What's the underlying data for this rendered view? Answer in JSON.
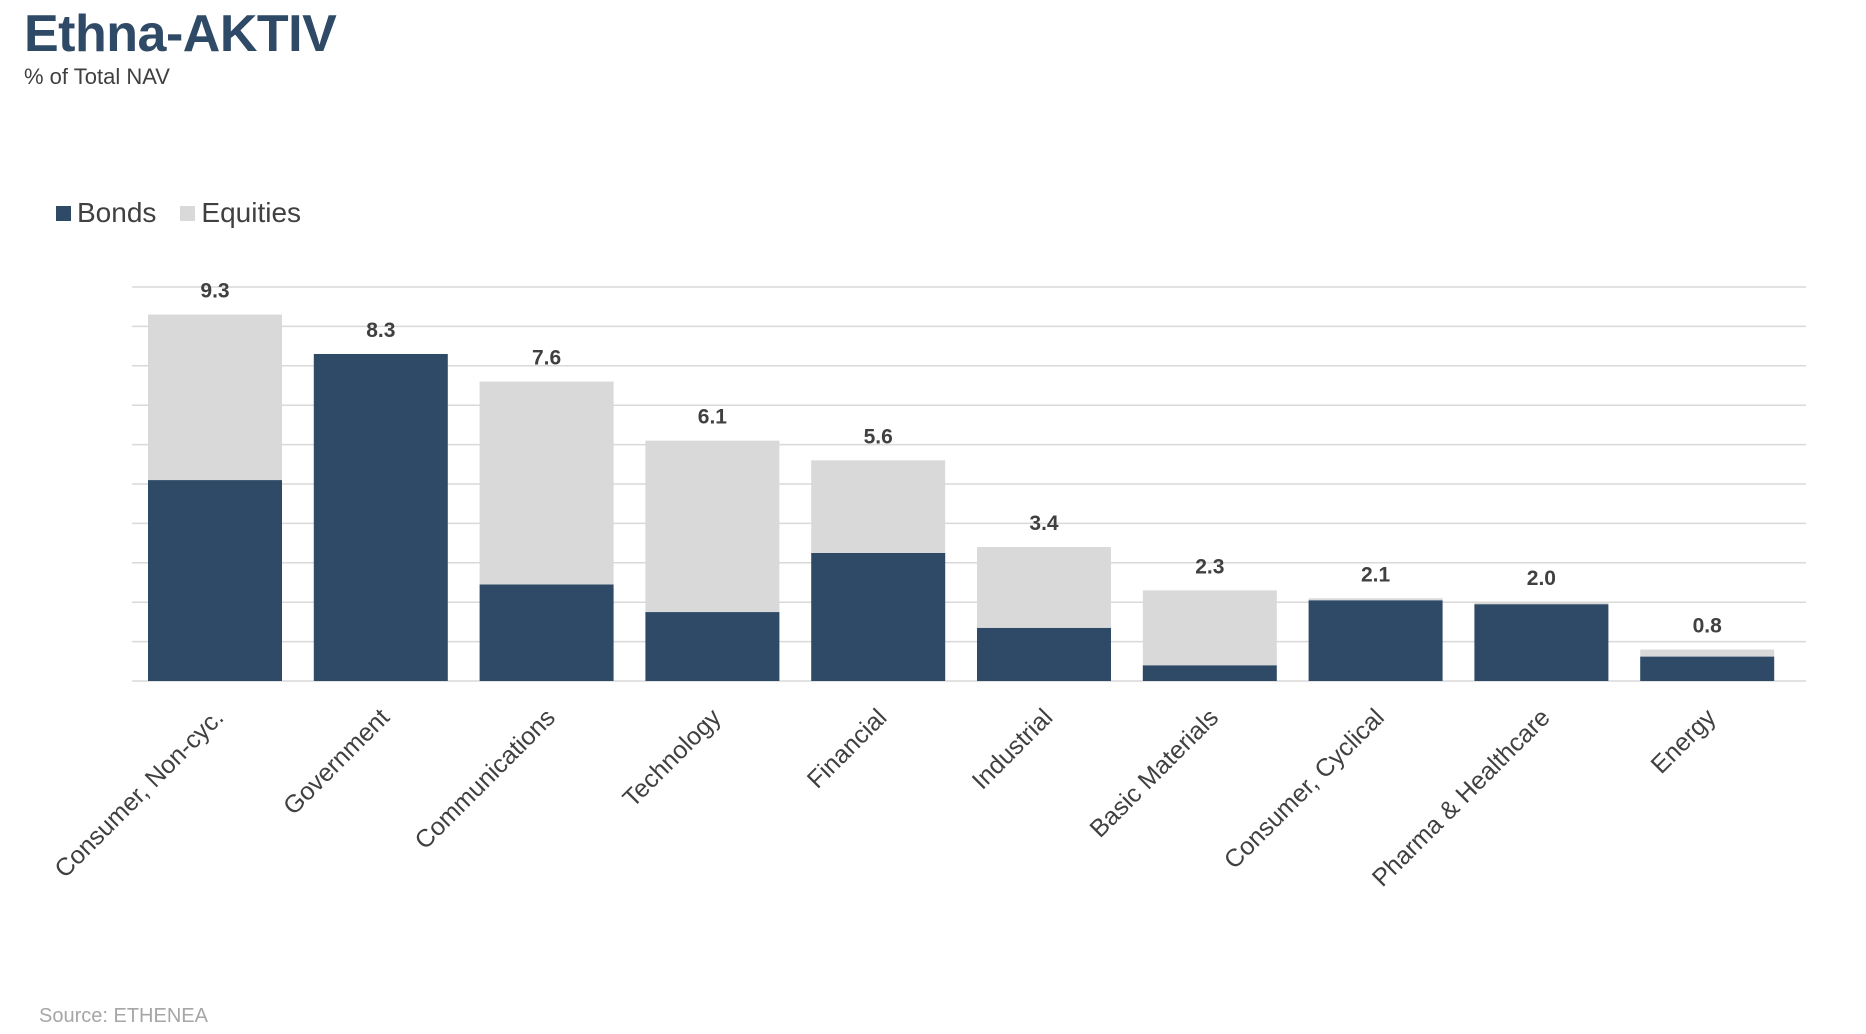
{
  "title": "Ethna-AKTIV",
  "subtitle": "% of Total NAV",
  "source": "Source: ETHENEA",
  "colors": {
    "bonds": "#2e4a67",
    "equities": "#d9d9d9",
    "grid": "#d9d9d9",
    "title": "#2e4a67",
    "label": "#404040"
  },
  "chart_data": {
    "type": "bar",
    "stacked": true,
    "categories": [
      "Consumer, Non-cyc.",
      "Government",
      "Communications",
      "Technology",
      "Financial",
      "Industrial",
      "Basic Materials",
      "Consumer, Cyclical",
      "Pharma & Healthcare",
      "Energy"
    ],
    "series": [
      {
        "name": "Bonds",
        "color": "#2e4a67",
        "values": [
          5.1,
          8.3,
          2.45,
          1.75,
          3.25,
          1.35,
          0.4,
          2.05,
          1.95,
          0.62
        ]
      },
      {
        "name": "Equities",
        "color": "#d9d9d9",
        "values": [
          4.2,
          0.0,
          5.15,
          4.35,
          2.35,
          2.05,
          1.9,
          0.05,
          0.05,
          0.18
        ]
      }
    ],
    "totals": [
      "9.3",
      "8.3",
      "7.6",
      "6.1",
      "5.6",
      "3.4",
      "2.3",
      "2.1",
      "2.0",
      "0.8"
    ],
    "ylim": [
      0,
      10
    ],
    "grid": true,
    "legend": "top-left"
  }
}
